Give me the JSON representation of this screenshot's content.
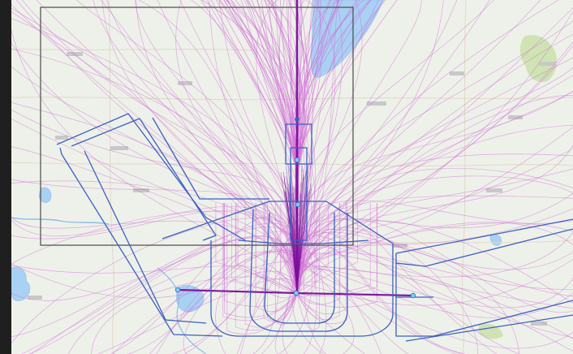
{
  "map": {
    "basemap": "topographic",
    "colors": {
      "background": "#eef1ea",
      "water": "#a9d1f3",
      "water_edge": "#8dbde8",
      "park": "#cfe3b3",
      "road": "#e6dfcf",
      "route_light": "#d06bd6",
      "route_dark": "#7a0f9a",
      "procedure_lines": "#3b5fc4",
      "study_boundary": "#4a4a4a",
      "fix_marker": "#7ad3f0"
    }
  }
}
